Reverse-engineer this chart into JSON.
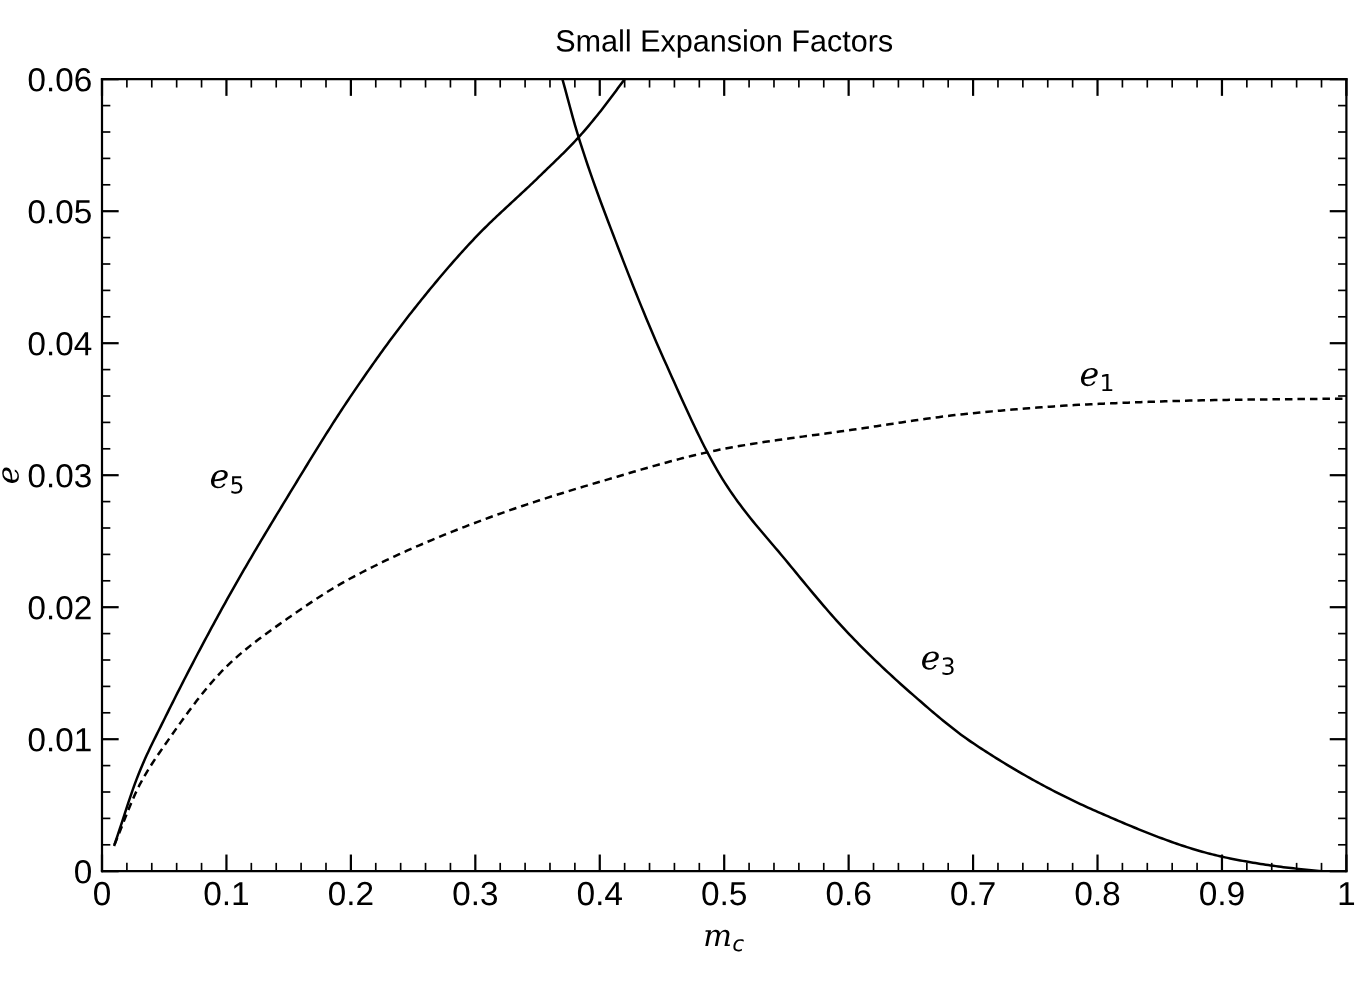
{
  "chart_data": {
    "type": "line",
    "title": "Small Expansion Factors",
    "xlabel": "m$_{c}$",
    "ylabel": "e",
    "xlim": [
      0,
      1
    ],
    "ylim": [
      0,
      0.06
    ],
    "xticks": [
      0,
      0.1,
      0.2,
      0.3,
      0.4,
      0.5,
      0.6,
      0.7,
      0.8,
      0.9,
      1
    ],
    "yticks": [
      0,
      0.01,
      0.02,
      0.03,
      0.04,
      0.05,
      0.06
    ],
    "grid": false,
    "legend": false,
    "marker": "none",
    "series": [
      {
        "name": "e$_{1}$",
        "color": "#000000",
        "line_style": "dashed",
        "x": [
          0.01,
          0.03,
          0.05,
          0.1,
          0.15,
          0.2,
          0.3,
          0.4,
          0.5,
          0.6,
          0.7,
          0.8,
          0.9,
          1.0
        ],
        "values": [
          0.002,
          0.0065,
          0.0095,
          0.0155,
          0.0192,
          0.0222,
          0.0264,
          0.0295,
          0.032,
          0.0334,
          0.0347,
          0.0354,
          0.0357,
          0.0358
        ]
      },
      {
        "name": "e$_{5}$",
        "color": "#000000",
        "line_style": "solid",
        "x": [
          0.01,
          0.03,
          0.05,
          0.1,
          0.15,
          0.2,
          0.25,
          0.3,
          0.35,
          0.383,
          0.4,
          0.42
        ],
        "values": [
          0.002,
          0.0075,
          0.0115,
          0.0205,
          0.0285,
          0.036,
          0.0425,
          0.048,
          0.0525,
          0.0556,
          0.0575,
          0.06
        ]
      },
      {
        "name": "e$_{3}$",
        "color": "#000000",
        "line_style": "solid",
        "x": [
          0.37,
          0.383,
          0.417,
          0.451,
          0.5,
          0.55,
          0.6,
          0.65,
          0.7,
          0.8,
          0.9,
          0.95,
          0.98
        ],
        "values": [
          0.06,
          0.0556,
          0.0467,
          0.0389,
          0.0295,
          0.0235,
          0.018,
          0.0135,
          0.0097,
          0.0045,
          0.0011,
          0.0003,
          0.0
        ]
      }
    ]
  }
}
